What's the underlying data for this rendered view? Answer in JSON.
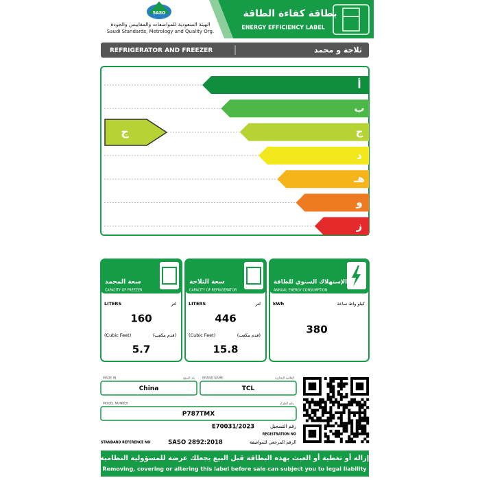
{
  "header": {
    "logo": "SASO",
    "org_ar": "الهيئة السعودية للمواصفات والمقاييس والجودة",
    "org_en": "Saudi Standards, Metrology and Quality Org.",
    "title_ar": "بطاقة كفاءة الطاقة",
    "title_en": "ENERGY EFFICIENCY LABEL"
  },
  "product": {
    "en": "REFRIGERATOR AND FREEZER",
    "ar": "ثلاجة و مجمد"
  },
  "rating": {
    "classes": [
      {
        "label": "أ",
        "color": "#0f8e3e"
      },
      {
        "label": "ب",
        "color": "#4db848"
      },
      {
        "label": "ج",
        "color": "#b5d334"
      },
      {
        "label": "د",
        "color": "#f3e81c"
      },
      {
        "label": "هـ",
        "color": "#f6b41b"
      },
      {
        "label": "و",
        "color": "#ee7a22"
      },
      {
        "label": "ز",
        "color": "#e42a2b"
      }
    ],
    "selected": "ج",
    "selected_color": "#b5d334"
  },
  "capacities": [
    {
      "title_ar": "سعة المجمد",
      "title_en": "CAPACITY OF FREEZER",
      "unit_en": "LITERS",
      "unit_ar": "لتر",
      "value": 160,
      "alt_unit_en": "(Cubic Feet)",
      "alt_unit_ar": "(قدم مكعب)",
      "alt_value": 5.7
    },
    {
      "title_ar": "سعة الثلاجة",
      "title_en": "CAPACITY OF REFRIGERATOR",
      "unit_en": "LITERS",
      "unit_ar": "لتر",
      "value": 446,
      "alt_unit_en": "(Cubic Feet)",
      "alt_unit_ar": "(قدم مكعب)",
      "alt_value": 15.8
    }
  ],
  "energy": {
    "title_ar": "الإستهلاك السنوي للطاقة",
    "title_en": "ANNUAL ENERGY CONSUMPTION",
    "unit_en": "kWh",
    "unit_ar": "كيلو واط ساعة",
    "value": 380
  },
  "details": {
    "made_in": {
      "label_en": "MADE IN",
      "label_ar": "بلد الصنع",
      "value": "China"
    },
    "brand": {
      "label_en": "BRAND NAME",
      "label_ar": "العلامة التجارية",
      "value": "TCL"
    },
    "model": {
      "label_en": "MODEL NUMBER",
      "label_ar": "رقم الطراز",
      "value": "P787TMX"
    },
    "registration": {
      "value": "E70031/2023",
      "label_ar": "رقم التسجيل",
      "label_en": "REGISTRATION NO"
    },
    "standard": {
      "label_en": "STANDARD REFERENCE NO",
      "value": "SASO 2892:2018",
      "label_ar": "الرقم المرجعي للمواصفة"
    }
  },
  "footer": {
    "ar": "إزالة أو تغطية أو العبث بهذه البطاقة قبل البيع يجعلك عرضة للمسؤولية النظامية",
    "en": "Removing, covering or altering this label before sale can subject you to legal liability"
  }
}
